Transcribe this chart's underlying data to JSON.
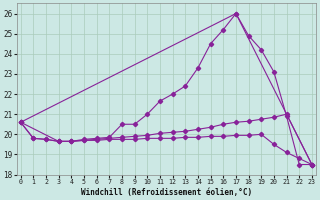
{
  "xlabel": "Windchill (Refroidissement éolien,°C)",
  "bg_color": "#cce8e4",
  "line_color": "#882299",
  "grid_color": "#aaccbb",
  "xlim_min": -0.3,
  "xlim_max": 23.3,
  "ylim_min": 18,
  "ylim_max": 26.5,
  "yticks": [
    18,
    19,
    20,
    21,
    22,
    23,
    24,
    25,
    26
  ],
  "xticks": [
    0,
    1,
    2,
    3,
    4,
    5,
    6,
    7,
    8,
    9,
    10,
    11,
    12,
    13,
    14,
    15,
    16,
    17,
    18,
    19,
    20,
    21,
    22,
    23
  ],
  "curve1_x": [
    0,
    1,
    2,
    3,
    4,
    5,
    6,
    7,
    8,
    9,
    10,
    11,
    12,
    13,
    14,
    15,
    16,
    17,
    18,
    19,
    20,
    21,
    22,
    23
  ],
  "curve1_y": [
    20.6,
    19.8,
    19.75,
    19.65,
    19.65,
    19.75,
    19.8,
    19.85,
    20.5,
    20.5,
    21.0,
    21.65,
    22.0,
    22.4,
    23.3,
    24.5,
    25.2,
    26.0,
    24.9,
    24.2,
    23.1,
    20.9,
    18.5,
    18.5
  ],
  "curve2_x": [
    0,
    3,
    4,
    5,
    6,
    7,
    8,
    9,
    10,
    11,
    12,
    13,
    14,
    15,
    16,
    17,
    18,
    19,
    20,
    21,
    23
  ],
  "curve2_y": [
    20.6,
    19.65,
    19.65,
    19.7,
    19.75,
    19.8,
    19.85,
    19.9,
    19.95,
    20.05,
    20.1,
    20.15,
    20.25,
    20.35,
    20.5,
    20.6,
    20.65,
    20.75,
    20.85,
    21.0,
    18.5
  ],
  "curve3_x": [
    0,
    17,
    23
  ],
  "curve3_y": [
    20.6,
    26.0,
    18.5
  ],
  "curve4_x": [
    0,
    1,
    2,
    3,
    4,
    5,
    6,
    7,
    8,
    9,
    10,
    11,
    12,
    13,
    14,
    15,
    16,
    17,
    18,
    19,
    20,
    21,
    22,
    23
  ],
  "curve4_y": [
    20.6,
    19.8,
    19.75,
    19.65,
    19.65,
    19.7,
    19.7,
    19.75,
    19.75,
    19.75,
    19.8,
    19.8,
    19.8,
    19.85,
    19.85,
    19.9,
    19.9,
    19.95,
    19.95,
    20.0,
    19.5,
    19.1,
    18.8,
    18.5
  ]
}
